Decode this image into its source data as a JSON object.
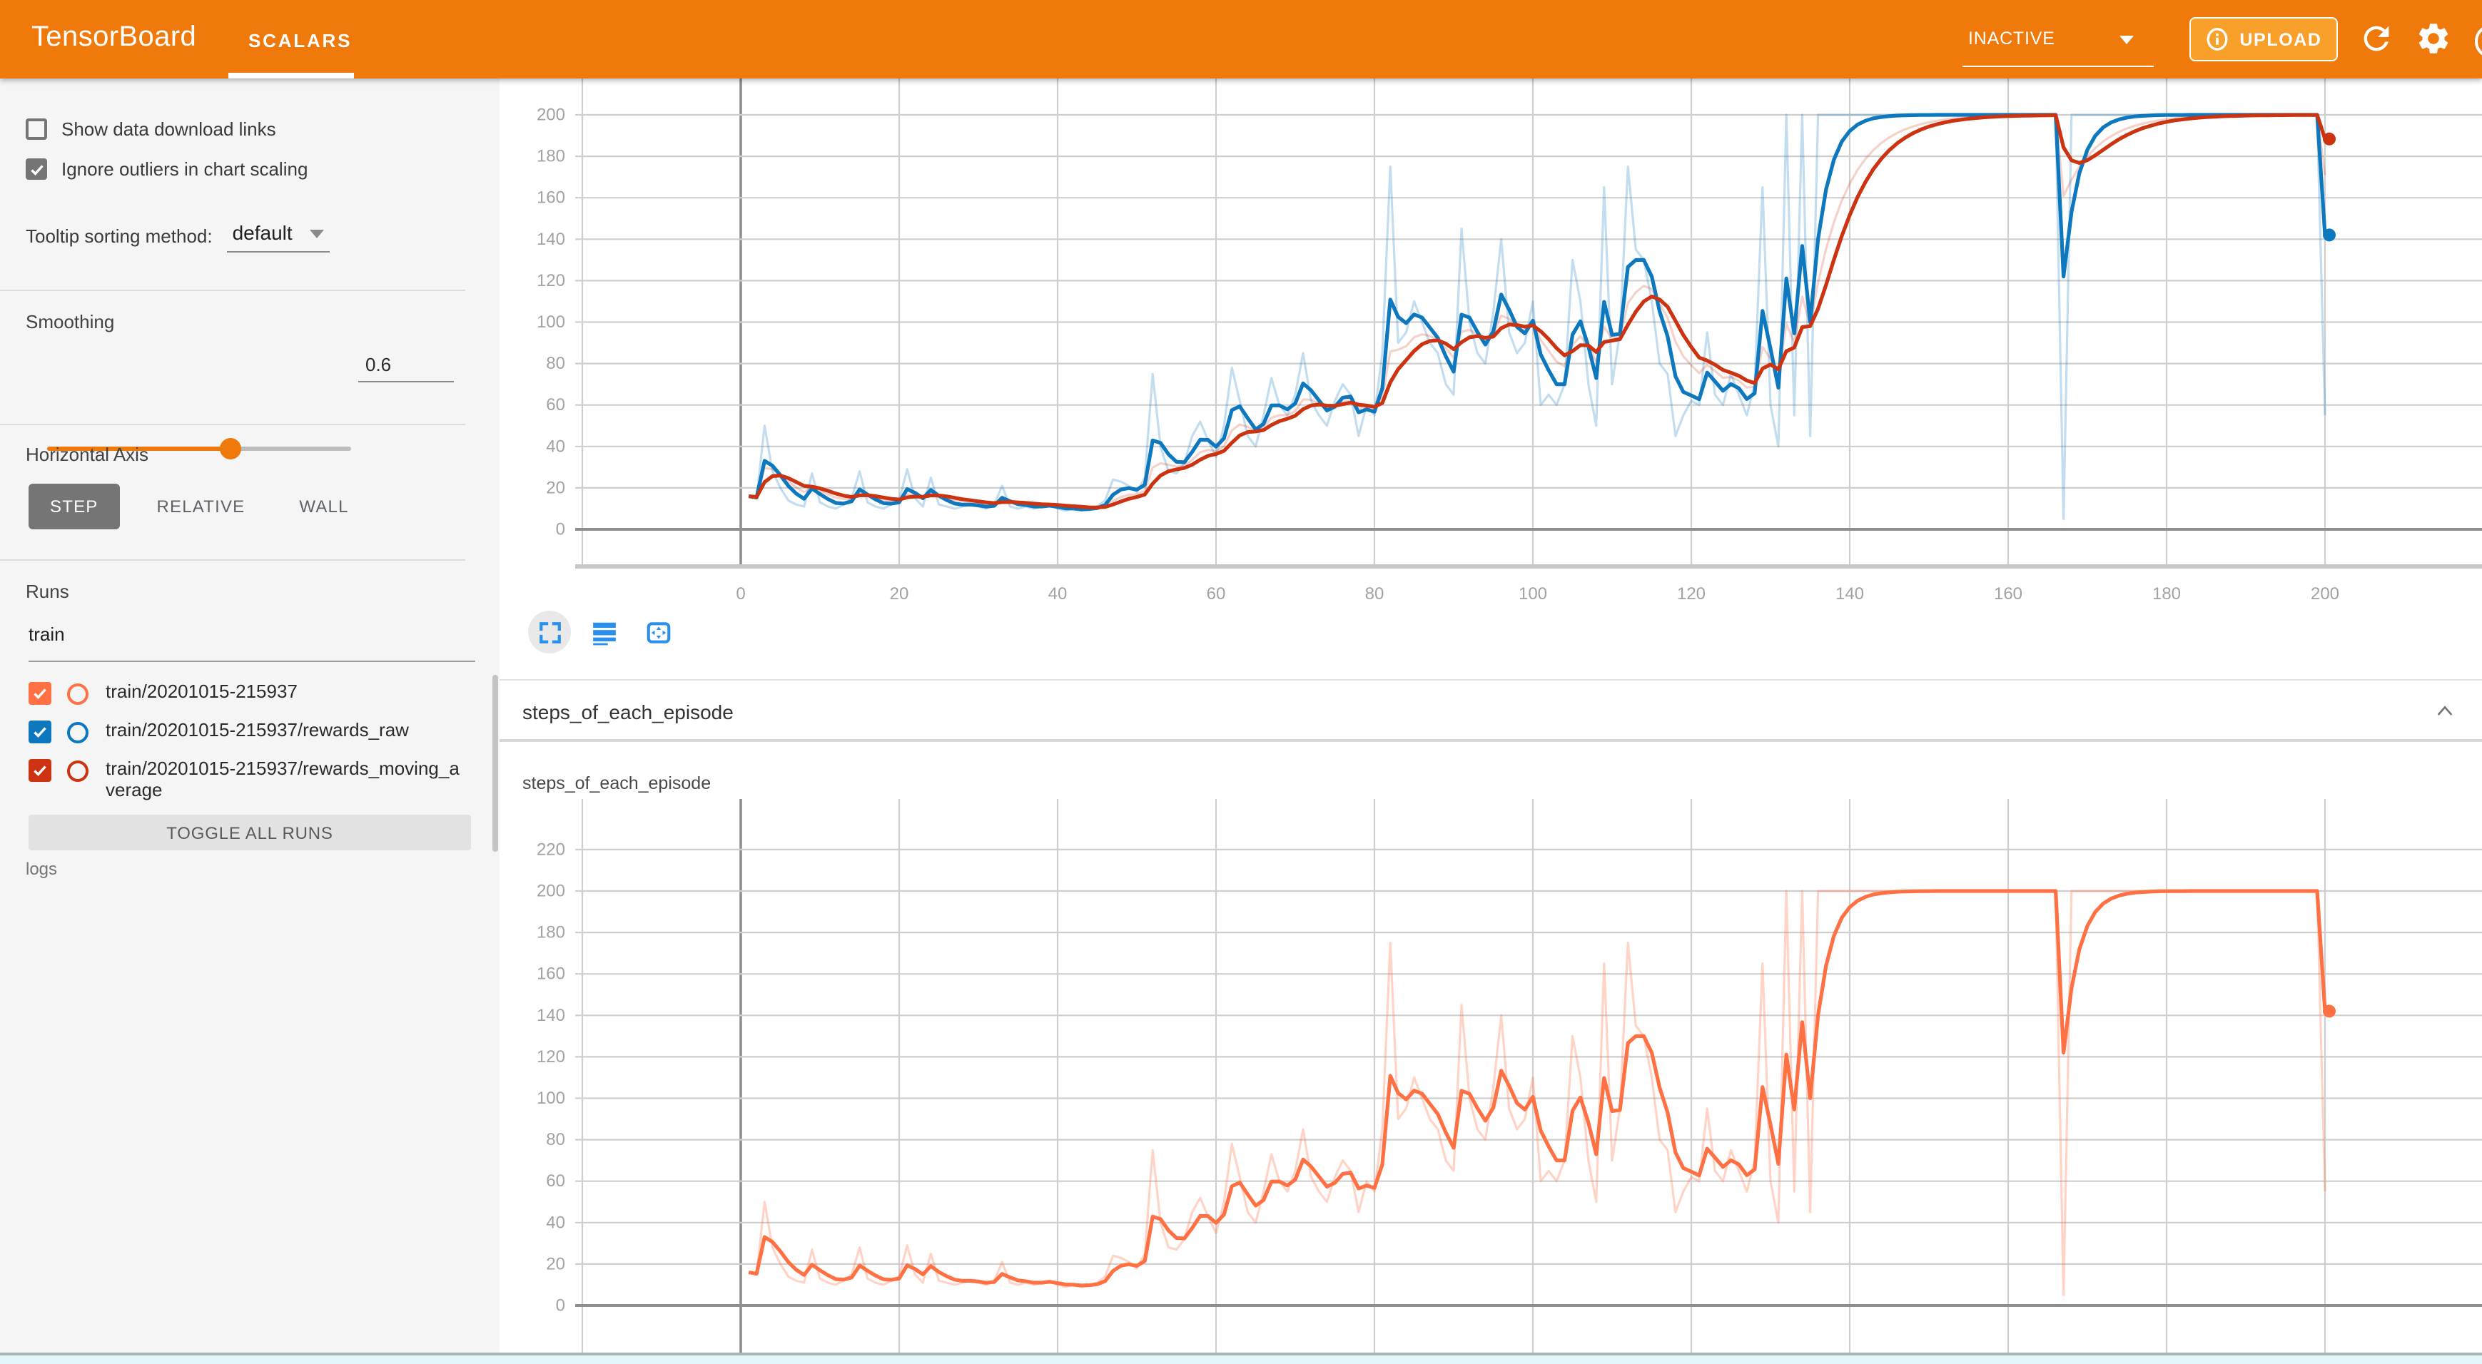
{
  "header": {
    "app_title": "TensorBoard",
    "tabs": [
      {
        "label": "SCALARS",
        "active": true
      }
    ],
    "status_dropdown": {
      "value": "INACTIVE"
    },
    "upload_button_label": "UPLOAD",
    "colors": {
      "background": "#f0790b",
      "upload_button_background": "#f9a02b"
    }
  },
  "sidebar": {
    "checkboxes": [
      {
        "label": "Show data download links",
        "checked": false
      },
      {
        "label": "Ignore outliers in chart scaling",
        "checked": true
      }
    ],
    "tooltip_sorting": {
      "label": "Tooltip sorting method:",
      "value": "default"
    },
    "smoothing": {
      "label": "Smoothing",
      "value": "0.6"
    },
    "horizontal_axis": {
      "label": "Horizontal Axis",
      "options": [
        "STEP",
        "RELATIVE",
        "WALL"
      ],
      "selected": "STEP"
    },
    "runs": {
      "label": "Runs",
      "filter_value": "train",
      "items": [
        {
          "label": "train/20201015-215937",
          "color": "#ff7043",
          "checked": true
        },
        {
          "label": "train/20201015-215937/rewards_raw",
          "color": "#0d78be",
          "checked": true
        },
        {
          "label": "train/20201015-215937/rewards_moving_average",
          "color": "#cc3311",
          "checked": true
        }
      ],
      "toggle_button_label": "TOGGLE ALL RUNS",
      "footer_label": "logs"
    }
  },
  "main": {
    "section_header": {
      "title": "steps_of_each_episode"
    },
    "card_title": "steps_of_each_episode"
  },
  "chart_data": [
    {
      "id": "rewards",
      "type": "line",
      "title": "",
      "xlabel": "",
      "ylabel": "",
      "xticks": [
        0,
        20,
        40,
        60,
        80,
        100,
        120,
        140,
        160,
        180,
        200
      ],
      "yticks": [
        0,
        20,
        40,
        60,
        80,
        100,
        120,
        140,
        160,
        180,
        200
      ],
      "xlim": [
        -20,
        220
      ],
      "ylim": [
        -18,
        217
      ],
      "grid": true,
      "legend_position": "none",
      "smoothing": 0.6,
      "x_start": 1,
      "x_step": 1,
      "values_ref": "episode_values",
      "series": [
        {
          "name": "train/20201015-215937/rewards_raw",
          "color": "#0d78be",
          "raw_opacity": 0.25
        },
        {
          "name": "train/20201015-215937/rewards_moving_average",
          "color": "#cc3311",
          "raw_opacity": 0.22,
          "ema_source": 0.8
        }
      ]
    },
    {
      "id": "steps_of_each_episode",
      "type": "line",
      "title": "steps_of_each_episode",
      "xlabel": "",
      "ylabel": "",
      "xticks": [],
      "yticks": [
        0,
        20,
        40,
        60,
        80,
        100,
        120,
        140,
        160,
        180,
        200,
        220
      ],
      "xlim": [
        -20,
        220
      ],
      "ylim": [
        -22,
        244
      ],
      "grid": true,
      "legend_position": "none",
      "smoothing": 0.6,
      "x_start": 1,
      "x_step": 1,
      "values_ref": "episode_values",
      "series": [
        {
          "name": "train/20201015-215937",
          "color": "#ff7043",
          "raw_opacity": 0.3
        }
      ]
    }
  ],
  "episode_values": [
    16,
    15,
    50,
    28,
    20,
    14,
    12,
    11,
    27,
    13,
    11,
    10,
    12,
    15,
    28,
    13,
    11,
    10,
    12,
    14,
    29,
    15,
    11,
    25,
    12,
    11,
    10,
    11,
    12,
    11,
    10,
    12,
    21,
    11,
    10,
    11,
    10,
    11,
    12,
    10,
    9,
    10,
    9,
    10,
    11,
    14,
    24,
    23,
    21,
    18,
    25,
    75,
    40,
    28,
    27,
    32,
    45,
    52,
    43,
    35,
    50,
    78,
    62,
    45,
    40,
    55,
    73,
    60,
    55,
    65,
    85,
    62,
    55,
    50,
    62,
    70,
    65,
    45,
    60,
    55,
    85,
    175,
    90,
    95,
    110,
    100,
    90,
    85,
    70,
    65,
    145,
    100,
    85,
    80,
    105,
    140,
    95,
    85,
    90,
    110,
    60,
    65,
    60,
    70,
    130,
    110,
    70,
    50,
    165,
    70,
    95,
    175,
    135,
    130,
    110,
    80,
    75,
    45,
    55,
    62,
    60,
    95,
    65,
    60,
    75,
    65,
    55,
    70,
    165,
    60,
    40,
    200,
    55,
    200,
    45,
    200,
    200,
    200,
    200,
    200,
    200,
    200,
    200,
    200,
    200,
    200,
    200,
    200,
    200,
    200,
    200,
    200,
    200,
    200,
    200,
    200,
    200,
    200,
    200,
    200,
    200,
    200,
    200,
    200,
    200,
    200,
    5,
    200,
    200,
    200,
    200,
    200,
    200,
    200,
    200,
    200,
    200,
    200,
    200,
    200,
    200,
    200,
    200,
    200,
    200,
    200,
    200,
    200,
    200,
    200,
    200,
    200,
    200,
    200,
    200,
    200,
    200,
    200,
    200,
    55
  ]
}
